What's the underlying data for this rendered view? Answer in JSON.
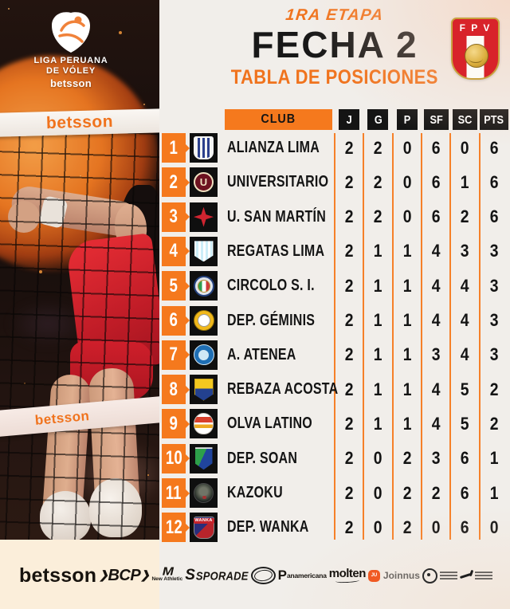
{
  "header": {
    "stage": "1RA ETAPA",
    "round": "FECHA 2",
    "subtitle": "TABLA DE POSICIONES",
    "league_logo": {
      "line1": "LIGA PERUANA",
      "line2": "DE VÓLEY",
      "line3": "betsson"
    },
    "fpv_letters": "F P V"
  },
  "photo": {
    "net_banner_top": "betsson",
    "net_banner_bottom": "betsson"
  },
  "table": {
    "club_header": "CLUB",
    "stat_headers": [
      "J",
      "G",
      "P",
      "SF",
      "SC",
      "PTS"
    ],
    "teams": [
      {
        "rank": "1",
        "id": "alianza-lima",
        "name": "ALIANZA LIMA",
        "stats": [
          "2",
          "2",
          "0",
          "6",
          "0",
          "6"
        ]
      },
      {
        "rank": "2",
        "id": "universitario",
        "name": "UNIVERSITARIO",
        "logo_text": "U",
        "stats": [
          "2",
          "2",
          "0",
          "6",
          "1",
          "6"
        ]
      },
      {
        "rank": "3",
        "id": "san-martin",
        "name": "U. SAN MARTÍN",
        "stats": [
          "2",
          "2",
          "0",
          "6",
          "2",
          "6"
        ]
      },
      {
        "rank": "4",
        "id": "regatas",
        "name": "REGATAS LIMA",
        "stats": [
          "2",
          "1",
          "1",
          "4",
          "3",
          "3"
        ]
      },
      {
        "rank": "5",
        "id": "circolo",
        "name": "CIRCOLO S. I.",
        "stats": [
          "2",
          "1",
          "1",
          "4",
          "4",
          "3"
        ]
      },
      {
        "rank": "6",
        "id": "geminis",
        "name": "DEP. GÉMINIS",
        "stats": [
          "2",
          "1",
          "1",
          "4",
          "4",
          "3"
        ]
      },
      {
        "rank": "7",
        "id": "atenea",
        "name": "A. ATENEA",
        "stats": [
          "2",
          "1",
          "1",
          "3",
          "4",
          "3"
        ]
      },
      {
        "rank": "8",
        "id": "rebaza",
        "name": "REBAZA ACOSTA",
        "stats": [
          "2",
          "1",
          "1",
          "4",
          "5",
          "2"
        ]
      },
      {
        "rank": "9",
        "id": "olva",
        "name": "OLVA LATINO",
        "stats": [
          "2",
          "1",
          "1",
          "4",
          "5",
          "2"
        ]
      },
      {
        "rank": "10",
        "id": "soan",
        "name": "DEP. SOAN",
        "stats": [
          "2",
          "0",
          "2",
          "3",
          "6",
          "1"
        ]
      },
      {
        "rank": "11",
        "id": "kazoku",
        "name": "KAZOKU",
        "stats": [
          "2",
          "0",
          "2",
          "2",
          "6",
          "1"
        ]
      },
      {
        "rank": "12",
        "id": "wanka",
        "name": "DEP. WANKA",
        "logo_text": "WANKA",
        "stats": [
          "2",
          "0",
          "2",
          "0",
          "6",
          "0"
        ]
      }
    ]
  },
  "sponsors": [
    {
      "id": "betsson",
      "label": "betsson"
    },
    {
      "id": "bcp",
      "label": "BCP"
    },
    {
      "id": "new-athletic",
      "label": "New Athletic",
      "mark": "M"
    },
    {
      "id": "sporade",
      "label": "SPORADE",
      "mark": "S"
    },
    {
      "id": "oval-badge",
      "label": ""
    },
    {
      "id": "panamericana",
      "label": "anamericana",
      "mark": "P"
    },
    {
      "id": "molten",
      "label": "molten"
    },
    {
      "id": "joinnus",
      "label": "Joinnus",
      "icon_text": "JU"
    },
    {
      "id": "regional-seal",
      "label": ""
    },
    {
      "id": "ipd",
      "label": ""
    }
  ],
  "colors": {
    "accent_orange": "#F5791D",
    "title_black": "#181818",
    "square_black": "#0F0F0F",
    "bg_light": "#F1EEEA",
    "bg_cream": "#FBEEDA",
    "fpv_red": "#D8232A",
    "fpv_gold": "#C9A23F"
  }
}
